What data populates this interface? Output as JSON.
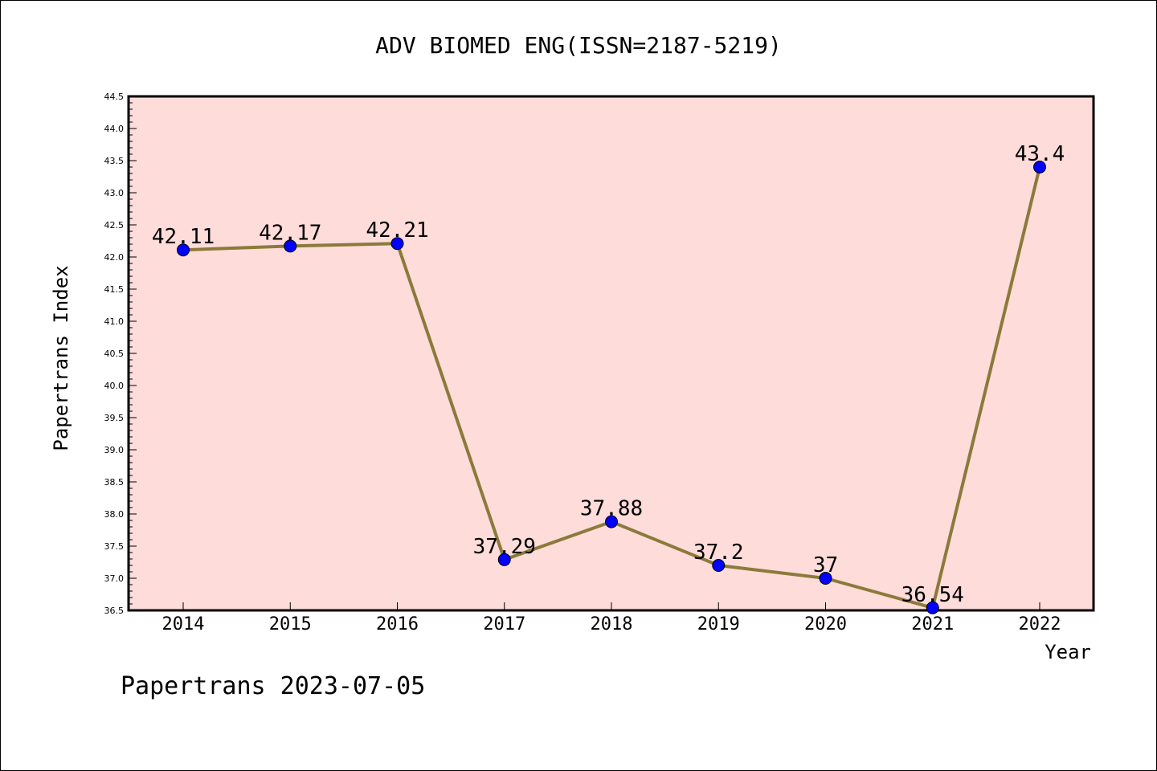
{
  "chart_data": {
    "type": "line",
    "title": "ADV BIOMED ENG(ISSN=2187-5219)",
    "xlabel": "Year",
    "ylabel": "Papertrans Index",
    "categories": [
      "2014",
      "2015",
      "2016",
      "2017",
      "2018",
      "2019",
      "2020",
      "2021",
      "2022"
    ],
    "values": [
      42.11,
      42.17,
      42.21,
      37.29,
      37.88,
      37.2,
      37.0,
      36.54,
      43.4
    ],
    "data_labels": [
      "42.11",
      "42.17",
      "42.21",
      "37.29",
      "37.88",
      "37.2",
      "37",
      "36.54",
      "43.4"
    ],
    "ylim": [
      36.5,
      44.5
    ],
    "yticks": [
      "36.5",
      "37.0",
      "37.5",
      "38.0",
      "38.5",
      "39.0",
      "39.5",
      "40.0",
      "40.5",
      "41.0",
      "41.5",
      "42.0",
      "42.5",
      "43.0",
      "43.5",
      "44.0",
      "44.5"
    ],
    "grid": false,
    "legend": "none",
    "colors": {
      "plot_background": "#fddcda",
      "line": "#8b7a3a",
      "marker": "#0000ff"
    }
  },
  "footer": "Papertrans 2023-07-05"
}
